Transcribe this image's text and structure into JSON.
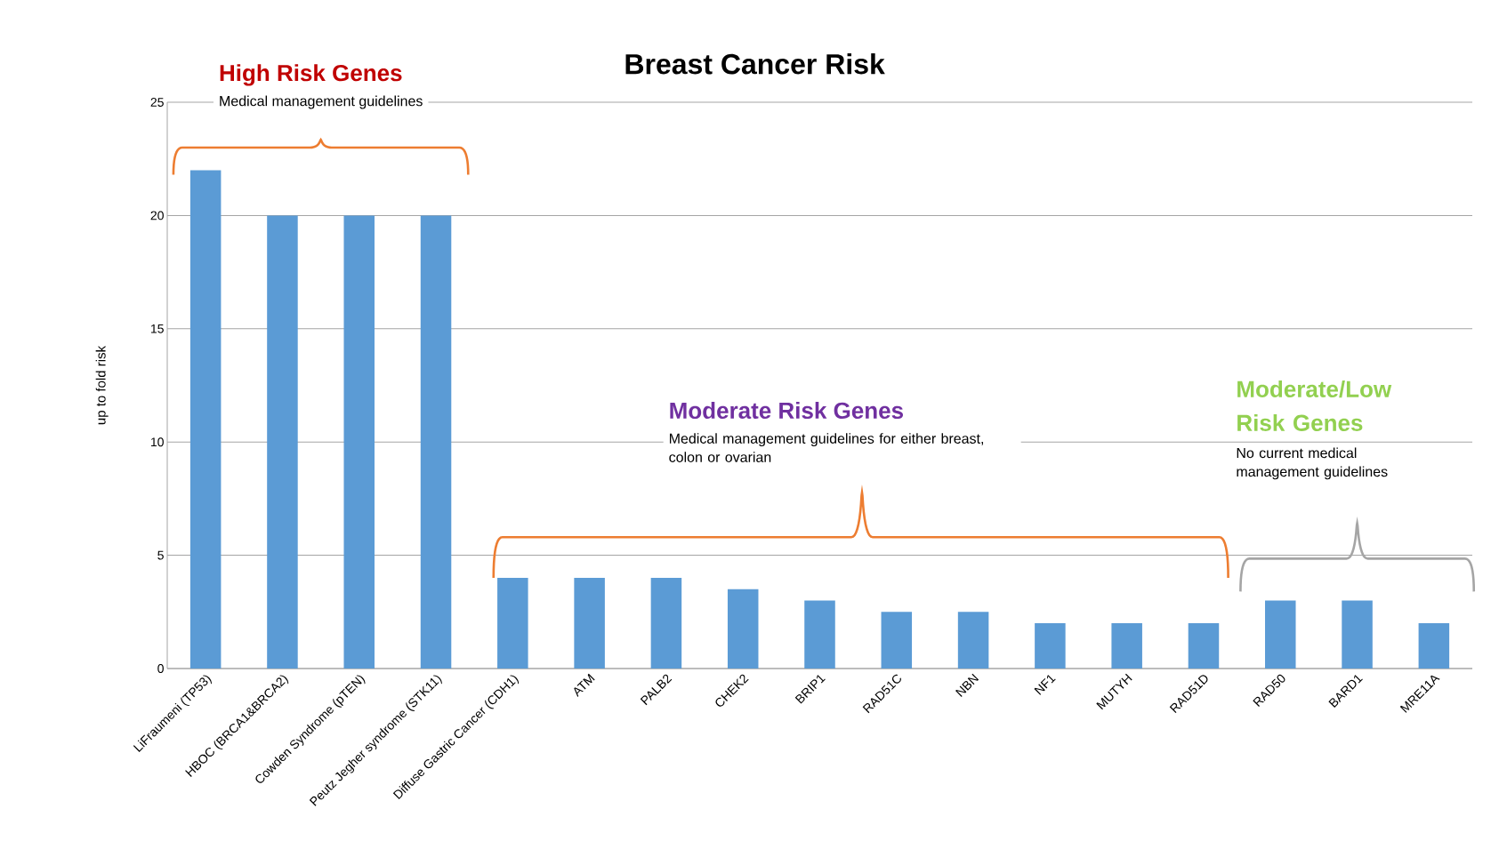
{
  "chart_data": {
    "type": "bar",
    "title": "Breast Cancer Risk",
    "ylabel": "up to fold risk",
    "categories": [
      "LiFraumeni (TP53)",
      "HBOC (BRCA1&BRCA2)",
      "Cowden Syndrome (pTEN)",
      "Peutz Jegher syndrome (STK11)",
      "Diffuse Gastric Cancer (CDH1)",
      "ATM",
      "PALB2",
      "CHEK2",
      "BRIP1",
      "RAD51C",
      "NBN",
      "NF1",
      "MUTYH",
      "RAD51D",
      "RAD50",
      "BARD1",
      "MRE11A"
    ],
    "values": [
      22,
      20,
      20,
      20,
      4,
      4,
      4,
      3.5,
      3,
      2.5,
      2.5,
      2,
      2,
      2,
      3,
      3,
      2
    ],
    "color": "#5b9bd5",
    "ylim": [
      0,
      25
    ],
    "yticks": [
      0,
      5,
      10,
      15,
      20,
      25
    ],
    "grid": "y",
    "annotations": [
      "High Risk Genes",
      "Medical management guidelines",
      "Moderate Risk Genes",
      "Medical management guidelines for either breast, colon or ovarian",
      "Moderate/Low Risk Genes",
      "No current medical management guidelines"
    ]
  }
}
